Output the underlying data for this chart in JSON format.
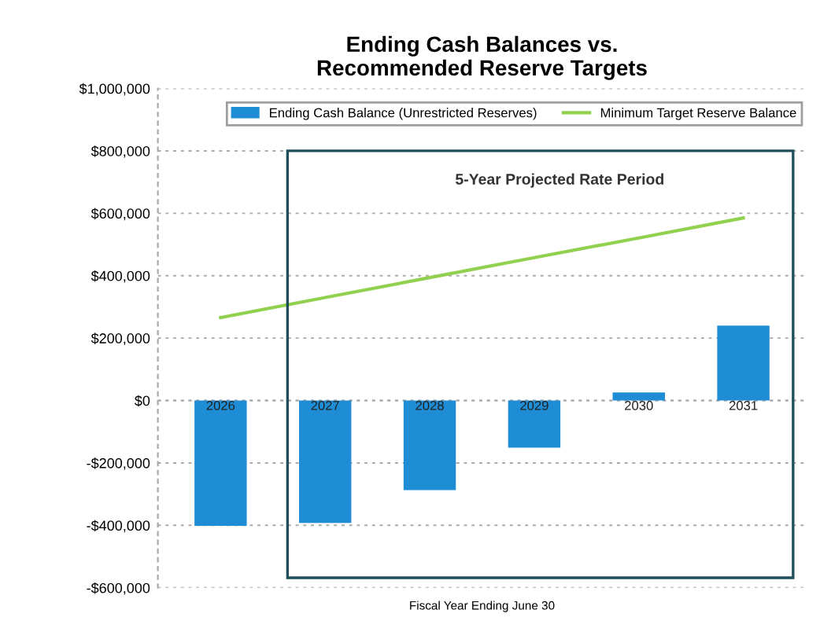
{
  "chart_data": {
    "type": "bar",
    "title": "Ending Cash Balances vs.\nRecommended Reserve Targets",
    "xlabel": "Fiscal Year Ending June 30",
    "categories": [
      "2026",
      "2027",
      "2028",
      "2029",
      "2030",
      "2031"
    ],
    "series": [
      {
        "name": "Ending Cash Balance (Unrestricted Reserves)",
        "color": "#1f8dd6",
        "values": [
          -402000,
          -392000,
          -287000,
          -151000,
          26000,
          240000
        ]
      },
      {
        "name": "Minimum Target Reserve Balance",
        "type": "line",
        "color": "#92d050",
        "values": [
          266000,
          330000,
          394000,
          458000,
          521000,
          585000
        ]
      }
    ],
    "ylim": [
      -600000,
      1000000
    ],
    "yticks": [
      {
        "value": -600000,
        "label": "-$600,000"
      },
      {
        "value": -400000,
        "label": "-$400,000"
      },
      {
        "value": -200000,
        "label": "-$200,000"
      },
      {
        "value": 0,
        "label": "$0"
      },
      {
        "value": 200000,
        "label": "$200,000"
      },
      {
        "value": 400000,
        "label": "$400,000"
      },
      {
        "value": 600000,
        "label": "$600,000"
      },
      {
        "value": 800000,
        "label": "$800,000"
      },
      {
        "value": 1000000,
        "label": "$1,000,000"
      }
    ],
    "annotations": [
      "5-Year Projected Rate Period"
    ],
    "grid": "y",
    "legend": "top",
    "marker": "none"
  }
}
